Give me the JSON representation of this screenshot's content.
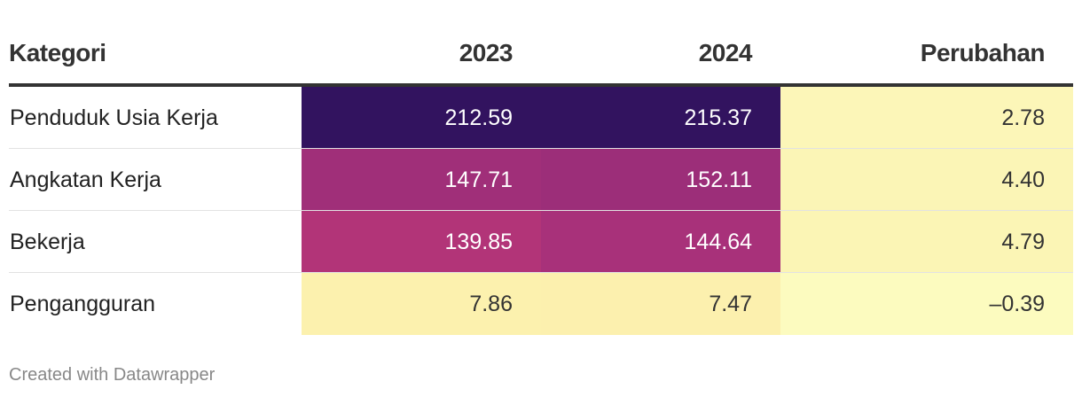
{
  "chart_data": {
    "type": "table",
    "columns": [
      "Kategori",
      "2023",
      "2024",
      "Perubahan"
    ],
    "rows": [
      {
        "category": "Penduduk Usia Kerja",
        "v2023": "212.59",
        "v2024": "215.37",
        "change": "2.78"
      },
      {
        "category": "Angkatan Kerja",
        "v2023": "147.71",
        "v2024": "152.11",
        "change": "4.40"
      },
      {
        "category": "Bekerja",
        "v2023": "139.85",
        "v2024": "144.64",
        "change": "4.79"
      },
      {
        "category": "Pengangguran",
        "v2023": "7.86",
        "v2024": "7.47",
        "change": "–0.39"
      }
    ],
    "cell_colors": [
      {
        "v2023": "#32135f",
        "v2024": "#32135f",
        "change": "#fcf6b8"
      },
      {
        "v2023": "#a02f79",
        "v2024": "#9c2e79",
        "change": "#fbf5b6"
      },
      {
        "v2023": "#b23478",
        "v2024": "#a8317a",
        "change": "#fbf5b5"
      },
      {
        "v2023": "#fcf1ae",
        "v2024": "#fcf0ae",
        "change": "#fcfbbf"
      }
    ],
    "text_colors": [
      {
        "v2023": "#ffffff",
        "v2024": "#ffffff",
        "change": "#333333"
      },
      {
        "v2023": "#ffffff",
        "v2024": "#ffffff",
        "change": "#333333"
      },
      {
        "v2023": "#ffffff",
        "v2024": "#ffffff",
        "change": "#333333"
      },
      {
        "v2023": "#333333",
        "v2024": "#333333",
        "change": "#333333"
      }
    ]
  },
  "footer": {
    "credit": "Created with Datawrapper"
  }
}
